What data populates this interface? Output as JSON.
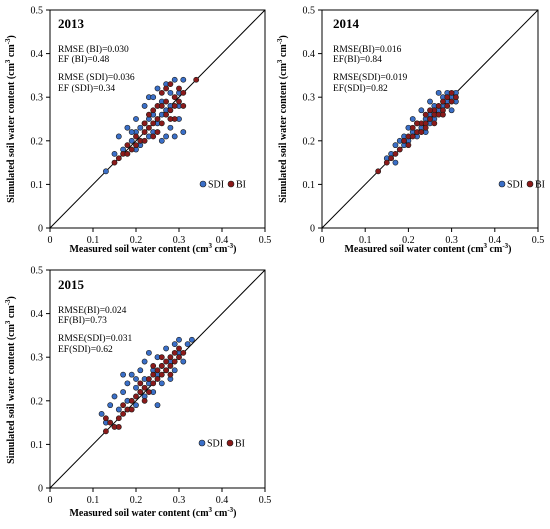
{
  "chart_data": [
    {
      "type": "scatter",
      "title": "2013",
      "xlabel": "Measured soil water content (cm³ cm⁻³)",
      "ylabel": "Simulated soil water content (cm³ cm⁻³)",
      "xlim": [
        0,
        0.5
      ],
      "ylim": [
        0,
        0.5
      ],
      "xticks": [
        "0",
        "0.1",
        "0.2",
        "0.3",
        "0.4",
        "0.5"
      ],
      "yticks": [
        "0",
        "0.1",
        "0.2",
        "0.3",
        "0.4",
        "0.5"
      ],
      "stats": [
        "RMSE (BI)=0.030",
        "EF (BI)=0.48",
        "RMSE (SDI)=0.036",
        "EF (SDI)=0.34"
      ],
      "legend": {
        "placement": "right-middle",
        "entries": [
          "SDI",
          "BI"
        ]
      },
      "reference_line": "1:1",
      "series": [
        {
          "name": "SDI",
          "color": "#3a6fc8",
          "points": [
            [
              0.13,
              0.13
            ],
            [
              0.15,
              0.17
            ],
            [
              0.16,
              0.21
            ],
            [
              0.17,
              0.18
            ],
            [
              0.18,
              0.23
            ],
            [
              0.19,
              0.2
            ],
            [
              0.2,
              0.22
            ],
            [
              0.2,
              0.25
            ],
            [
              0.21,
              0.19
            ],
            [
              0.22,
              0.28
            ],
            [
              0.22,
              0.24
            ],
            [
              0.23,
              0.21
            ],
            [
              0.23,
              0.3
            ],
            [
              0.24,
              0.26
            ],
            [
              0.24,
              0.22
            ],
            [
              0.25,
              0.32
            ],
            [
              0.25,
              0.24
            ],
            [
              0.26,
              0.2
            ],
            [
              0.26,
              0.29
            ],
            [
              0.27,
              0.27
            ],
            [
              0.27,
              0.33
            ],
            [
              0.28,
              0.23
            ],
            [
              0.28,
              0.31
            ],
            [
              0.29,
              0.21
            ],
            [
              0.29,
              0.34
            ],
            [
              0.3,
              0.28
            ],
            [
              0.3,
              0.25
            ],
            [
              0.31,
              0.22
            ],
            [
              0.31,
              0.34
            ],
            [
              0.26,
              0.26
            ],
            [
              0.23,
              0.25
            ],
            [
              0.21,
              0.23
            ],
            [
              0.19,
              0.22
            ],
            [
              0.28,
              0.28
            ],
            [
              0.24,
              0.3
            ],
            [
              0.2,
              0.18
            ],
            [
              0.27,
              0.21
            ],
            [
              0.3,
              0.31
            ]
          ]
        },
        {
          "name": "BI",
          "color": "#8b1a1a",
          "points": [
            [
              0.15,
              0.15
            ],
            [
              0.16,
              0.16
            ],
            [
              0.17,
              0.17
            ],
            [
              0.18,
              0.19
            ],
            [
              0.19,
              0.18
            ],
            [
              0.2,
              0.21
            ],
            [
              0.21,
              0.2
            ],
            [
              0.22,
              0.22
            ],
            [
              0.22,
              0.24
            ],
            [
              0.23,
              0.23
            ],
            [
              0.24,
              0.24
            ],
            [
              0.24,
              0.27
            ],
            [
              0.25,
              0.25
            ],
            [
              0.25,
              0.28
            ],
            [
              0.26,
              0.24
            ],
            [
              0.26,
              0.31
            ],
            [
              0.27,
              0.26
            ],
            [
              0.27,
              0.29
            ],
            [
              0.28,
              0.27
            ],
            [
              0.28,
              0.33
            ],
            [
              0.29,
              0.3
            ],
            [
              0.29,
              0.25
            ],
            [
              0.3,
              0.29
            ],
            [
              0.3,
              0.32
            ],
            [
              0.31,
              0.28
            ],
            [
              0.31,
              0.31
            ],
            [
              0.25,
              0.22
            ],
            [
              0.23,
              0.26
            ],
            [
              0.26,
              0.28
            ],
            [
              0.28,
              0.25
            ],
            [
              0.34,
              0.34
            ],
            [
              0.2,
              0.19
            ],
            [
              0.18,
              0.17
            ],
            [
              0.24,
              0.21
            ],
            [
              0.27,
              0.32
            ],
            [
              0.29,
              0.28
            ],
            [
              0.22,
              0.2
            ]
          ]
        }
      ]
    },
    {
      "type": "scatter",
      "title": "2014",
      "xlabel": "Measured soil water content (cm³ cm⁻³)",
      "ylabel": "Simulated soil water content (cm³ cm⁻³)",
      "xlim": [
        0,
        0.5
      ],
      "ylim": [
        0,
        0.5
      ],
      "xticks": [
        "0",
        "0.1",
        "0.2",
        "0.3",
        "0.4",
        "0.5"
      ],
      "yticks": [
        "0",
        "0.1",
        "0.2",
        "0.3",
        "0.4",
        "0.5"
      ],
      "stats": [
        "RMSE(BI)=0.016",
        "EF(BI)=0.84",
        "RMSE(SDI)=0.019",
        "EF(SDI)=0.82"
      ],
      "legend": {
        "placement": "right-middle",
        "entries": [
          "SDI",
          "BI"
        ]
      },
      "reference_line": "1:1",
      "series": [
        {
          "name": "SDI",
          "color": "#3a6fc8",
          "points": [
            [
              0.15,
              0.16
            ],
            [
              0.16,
              0.17
            ],
            [
              0.17,
              0.19
            ],
            [
              0.18,
              0.2
            ],
            [
              0.19,
              0.21
            ],
            [
              0.2,
              0.23
            ],
            [
              0.2,
              0.2
            ],
            [
              0.21,
              0.22
            ],
            [
              0.21,
              0.25
            ],
            [
              0.22,
              0.24
            ],
            [
              0.23,
              0.23
            ],
            [
              0.23,
              0.27
            ],
            [
              0.24,
              0.25
            ],
            [
              0.25,
              0.26
            ],
            [
              0.25,
              0.29
            ],
            [
              0.26,
              0.28
            ],
            [
              0.27,
              0.27
            ],
            [
              0.28,
              0.3
            ],
            [
              0.28,
              0.28
            ],
            [
              0.29,
              0.31
            ],
            [
              0.29,
              0.29
            ],
            [
              0.3,
              0.3
            ],
            [
              0.31,
              0.29
            ],
            [
              0.3,
              0.27
            ],
            [
              0.24,
              0.22
            ],
            [
              0.22,
              0.21
            ],
            [
              0.27,
              0.31
            ],
            [
              0.26,
              0.25
            ],
            [
              0.19,
              0.19
            ],
            [
              0.17,
              0.15
            ],
            [
              0.31,
              0.31
            ],
            [
              0.25,
              0.24
            ]
          ]
        },
        {
          "name": "BI",
          "color": "#8b1a1a",
          "points": [
            [
              0.13,
              0.13
            ],
            [
              0.15,
              0.15
            ],
            [
              0.16,
              0.16
            ],
            [
              0.17,
              0.17
            ],
            [
              0.18,
              0.18
            ],
            [
              0.19,
              0.2
            ],
            [
              0.2,
              0.21
            ],
            [
              0.21,
              0.21
            ],
            [
              0.21,
              0.23
            ],
            [
              0.22,
              0.22
            ],
            [
              0.23,
              0.24
            ],
            [
              0.24,
              0.24
            ],
            [
              0.24,
              0.26
            ],
            [
              0.25,
              0.25
            ],
            [
              0.26,
              0.26
            ],
            [
              0.26,
              0.27
            ],
            [
              0.27,
              0.26
            ],
            [
              0.27,
              0.28
            ],
            [
              0.28,
              0.27
            ],
            [
              0.28,
              0.29
            ],
            [
              0.29,
              0.28
            ],
            [
              0.29,
              0.3
            ],
            [
              0.3,
              0.29
            ],
            [
              0.3,
              0.31
            ],
            [
              0.31,
              0.3
            ],
            [
              0.23,
              0.22
            ],
            [
              0.25,
              0.27
            ],
            [
              0.2,
              0.19
            ],
            [
              0.22,
              0.24
            ],
            [
              0.26,
              0.24
            ],
            [
              0.28,
              0.26
            ],
            [
              0.24,
              0.23
            ]
          ]
        }
      ]
    },
    {
      "type": "scatter",
      "title": "2015",
      "xlabel": "Measured soil water content (cm³ cm⁻³)",
      "ylabel": "Simulated soil water content (cm³ cm⁻³)",
      "xlim": [
        0,
        0.5
      ],
      "ylim": [
        0,
        0.5
      ],
      "xticks": [
        "0",
        "0.1",
        "0.2",
        "0.3",
        "0.4",
        "0.5"
      ],
      "yticks": [
        "0",
        "0.1",
        "0.2",
        "0.3",
        "0.4",
        "0.5"
      ],
      "stats": [
        "RMSE(BI)=0.024",
        "EF(BI)=0.73",
        "RMSE(SDI)=0.031",
        "EF(SDI)=0.62"
      ],
      "legend": {
        "placement": "right-middle",
        "entries": [
          "SDI",
          "BI"
        ]
      },
      "reference_line": "1:1",
      "series": [
        {
          "name": "SDI",
          "color": "#3a6fc8",
          "points": [
            [
              0.12,
              0.17
            ],
            [
              0.13,
              0.15
            ],
            [
              0.14,
              0.19
            ],
            [
              0.15,
              0.21
            ],
            [
              0.16,
              0.18
            ],
            [
              0.17,
              0.22
            ],
            [
              0.18,
              0.24
            ],
            [
              0.18,
              0.2
            ],
            [
              0.19,
              0.26
            ],
            [
              0.2,
              0.23
            ],
            [
              0.2,
              0.19
            ],
            [
              0.21,
              0.27
            ],
            [
              0.21,
              0.22
            ],
            [
              0.22,
              0.29
            ],
            [
              0.22,
              0.25
            ],
            [
              0.23,
              0.24
            ],
            [
              0.23,
              0.31
            ],
            [
              0.24,
              0.27
            ],
            [
              0.24,
              0.22
            ],
            [
              0.25,
              0.3
            ],
            [
              0.25,
              0.26
            ],
            [
              0.26,
              0.28
            ],
            [
              0.26,
              0.24
            ],
            [
              0.27,
              0.32
            ],
            [
              0.27,
              0.27
            ],
            [
              0.28,
              0.29
            ],
            [
              0.28,
              0.25
            ],
            [
              0.29,
              0.33
            ],
            [
              0.29,
              0.27
            ],
            [
              0.3,
              0.31
            ],
            [
              0.3,
              0.34
            ],
            [
              0.31,
              0.29
            ],
            [
              0.32,
              0.33
            ],
            [
              0.33,
              0.34
            ],
            [
              0.2,
              0.25
            ],
            [
              0.17,
              0.26
            ],
            [
              0.25,
              0.19
            ],
            [
              0.22,
              0.21
            ]
          ]
        },
        {
          "name": "BI",
          "color": "#8b1a1a",
          "points": [
            [
              0.13,
              0.13
            ],
            [
              0.13,
              0.16
            ],
            [
              0.14,
              0.15
            ],
            [
              0.15,
              0.14
            ],
            [
              0.16,
              0.16
            ],
            [
              0.17,
              0.17
            ],
            [
              0.17,
              0.19
            ],
            [
              0.18,
              0.18
            ],
            [
              0.19,
              0.2
            ],
            [
              0.2,
              0.21
            ],
            [
              0.21,
              0.22
            ],
            [
              0.21,
              0.24
            ],
            [
              0.22,
              0.23
            ],
            [
              0.23,
              0.25
            ],
            [
              0.23,
              0.22
            ],
            [
              0.24,
              0.26
            ],
            [
              0.24,
              0.24
            ],
            [
              0.25,
              0.27
            ],
            [
              0.25,
              0.25
            ],
            [
              0.26,
              0.28
            ],
            [
              0.26,
              0.26
            ],
            [
              0.27,
              0.29
            ],
            [
              0.27,
              0.27
            ],
            [
              0.28,
              0.3
            ],
            [
              0.28,
              0.28
            ],
            [
              0.29,
              0.31
            ],
            [
              0.29,
              0.29
            ],
            [
              0.3,
              0.3
            ],
            [
              0.3,
              0.32
            ],
            [
              0.31,
              0.31
            ],
            [
              0.22,
              0.2
            ],
            [
              0.19,
              0.18
            ],
            [
              0.26,
              0.3
            ],
            [
              0.28,
              0.26
            ],
            [
              0.16,
              0.14
            ],
            [
              0.24,
              0.28
            ]
          ]
        }
      ]
    }
  ]
}
